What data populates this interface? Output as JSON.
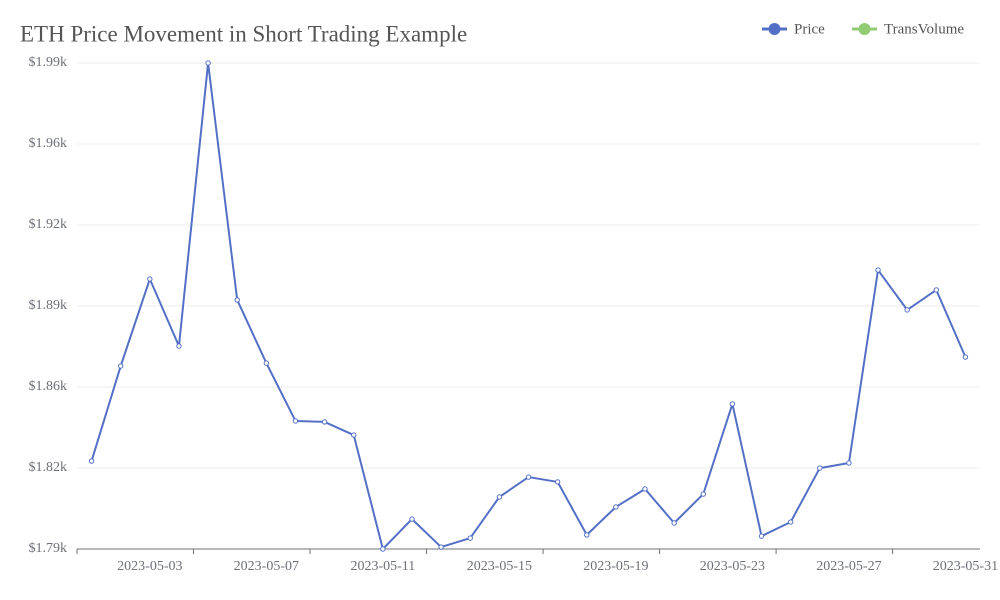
{
  "chart_data": {
    "type": "line",
    "title": "ETH Price Movement in Short Trading Example",
    "categories": [
      null,
      null,
      "2023-05-03",
      null,
      null,
      null,
      "2023-05-07",
      null,
      null,
      null,
      "2023-05-11",
      null,
      null,
      null,
      "2023-05-15",
      null,
      null,
      null,
      "2023-05-19",
      null,
      null,
      null,
      "2023-05-23",
      null,
      null,
      null,
      "2023-05-27",
      null,
      null,
      null,
      "2023-05-31"
    ],
    "series": [
      {
        "name": "Price",
        "color": "#5470c6",
        "values": [
          1826.2,
          1865.3,
          1901.1,
          1873.5,
          1990,
          1892.5,
          1866.5,
          1842.7,
          1842.3,
          1836.9,
          1790,
          1802.3,
          1790.8,
          1794.5,
          1811.4,
          1819.6,
          1817.6,
          1795.8,
          1807.3,
          1814.7,
          1800.7,
          1812.6,
          1849.7,
          1795.3,
          1801.1,
          1823.3,
          1825.4,
          1904.8,
          1888.4,
          1896.6,
          1869.0
        ]
      }
    ],
    "legend": [
      {
        "name": "Price",
        "color": "#5470c6"
      },
      {
        "name": "TransVolume",
        "color": "#91cc75"
      }
    ],
    "ylim": [
      1790,
      1990
    ],
    "yticks": [
      {
        "value": 1790,
        "label": "$1.79k"
      },
      {
        "value": 1823.33,
        "label": "$1.82k"
      },
      {
        "value": 1856.67,
        "label": "$1.86k"
      },
      {
        "value": 1890,
        "label": "$1.89k"
      },
      {
        "value": 1923.33,
        "label": "$1.92k"
      },
      {
        "value": 1956.67,
        "label": "$1.96k"
      },
      {
        "value": 1990,
        "label": "$1.99k"
      }
    ],
    "grid": true
  }
}
